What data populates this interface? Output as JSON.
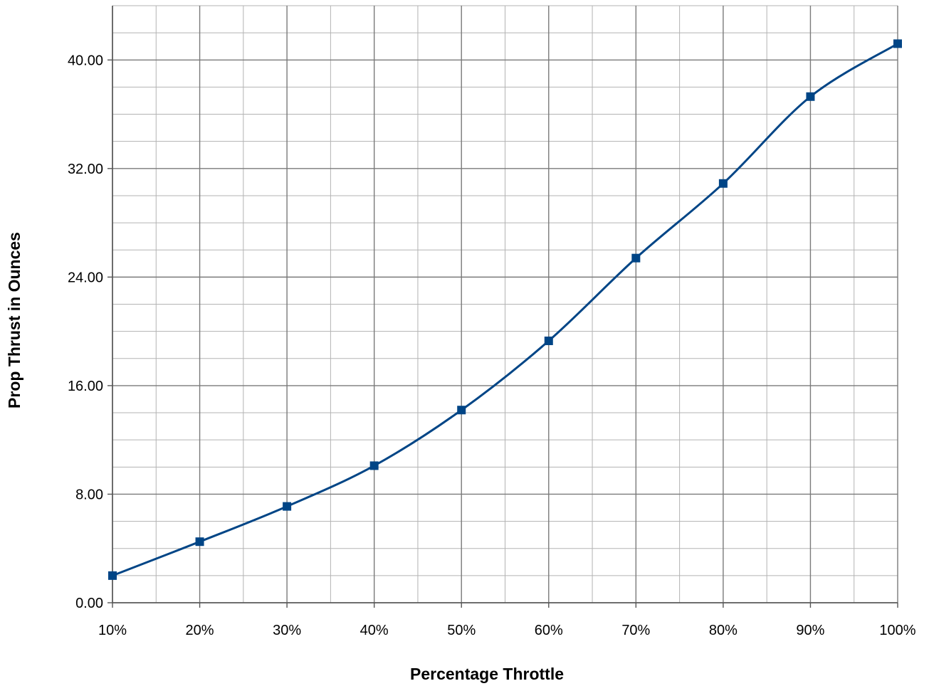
{
  "chart_data": {
    "type": "line",
    "title": "",
    "xlabel": "Percentage Throttle",
    "ylabel": "Prop Thrust in Ounces",
    "categories": [
      "10%",
      "20%",
      "30%",
      "40%",
      "50%",
      "60%",
      "70%",
      "80%",
      "90%",
      "100%"
    ],
    "y_tick_labels": [
      "0.00",
      "8.00",
      "16.00",
      "24.00",
      "32.00",
      "40.00"
    ],
    "y_ticks": [
      0,
      8,
      16,
      24,
      32,
      40
    ],
    "ylim": [
      0,
      44
    ],
    "grid": true,
    "legend": "none",
    "series": [
      {
        "values": [
          2.0,
          4.5,
          7.1,
          10.1,
          14.2,
          19.3,
          25.4,
          30.9,
          37.3,
          41.2
        ],
        "color": "#004586",
        "marker": "square",
        "smooth": true
      }
    ]
  }
}
